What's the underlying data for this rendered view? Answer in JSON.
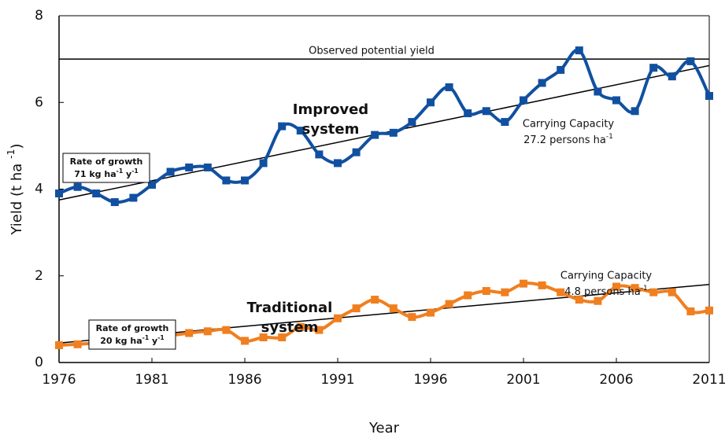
{
  "chart_data": {
    "type": "line",
    "x_label": "Year",
    "y_label": [
      "Yield (t ha ",
      "-1",
      ")"
    ],
    "x": [
      1976,
      1977,
      1978,
      1979,
      1980,
      1981,
      1982,
      1983,
      1984,
      1985,
      1986,
      1987,
      1988,
      1989,
      1990,
      1991,
      1992,
      1993,
      1994,
      1995,
      1996,
      1997,
      1998,
      1999,
      2000,
      2001,
      2002,
      2003,
      2004,
      2005,
      2006,
      2007,
      2008,
      2009,
      2010,
      2011
    ],
    "xlim": [
      1976,
      2011
    ],
    "xticks": [
      1976,
      1981,
      1986,
      1991,
      1996,
      2001,
      2006,
      2011
    ],
    "ylim": [
      0,
      8
    ],
    "yticks": [
      0,
      2,
      4,
      6,
      8
    ],
    "series": [
      {
        "name": [
          "Improved",
          "system"
        ],
        "color": "#1150a0",
        "values": [
          3.9,
          4.05,
          3.9,
          3.7,
          3.8,
          4.1,
          4.4,
          4.5,
          4.5,
          4.2,
          4.2,
          4.6,
          5.45,
          5.35,
          4.8,
          4.6,
          4.85,
          5.25,
          5.3,
          5.55,
          6.0,
          6.35,
          5.75,
          5.8,
          5.55,
          6.05,
          6.45,
          6.75,
          7.2,
          6.25,
          6.05,
          5.8,
          6.8,
          6.6,
          6.95,
          6.15
        ],
        "trend": [
          3.75,
          6.85
        ],
        "rate": [
          "Rate of growth",
          [
            "71 kg ha",
            "-1",
            " y",
            "-1"
          ]
        ],
        "capacity": [
          "Carrying Capacity",
          [
            "27.2 persons ha",
            "-1"
          ]
        ]
      },
      {
        "name": [
          "Traditional",
          "system"
        ],
        "color": "#f07f1f",
        "values": [
          0.4,
          0.42,
          0.45,
          0.47,
          0.55,
          0.57,
          0.62,
          0.68,
          0.72,
          0.75,
          0.5,
          0.58,
          0.58,
          0.82,
          0.75,
          1.02,
          1.25,
          1.45,
          1.25,
          1.05,
          1.15,
          1.35,
          1.55,
          1.65,
          1.62,
          1.82,
          1.78,
          1.62,
          1.45,
          1.42,
          1.75,
          1.72,
          1.62,
          1.62,
          1.18,
          1.2
        ],
        "trend": [
          0.45,
          1.8
        ],
        "rate": [
          "Rate of growth",
          [
            "20 kg ha",
            "-1",
            " y",
            "-1"
          ]
        ],
        "capacity": [
          "Carrying Capacity",
          [
            "4.8 persons ha",
            "-1"
          ]
        ]
      }
    ],
    "reference": {
      "value": 7.0,
      "label": "Observed potential yield"
    }
  }
}
